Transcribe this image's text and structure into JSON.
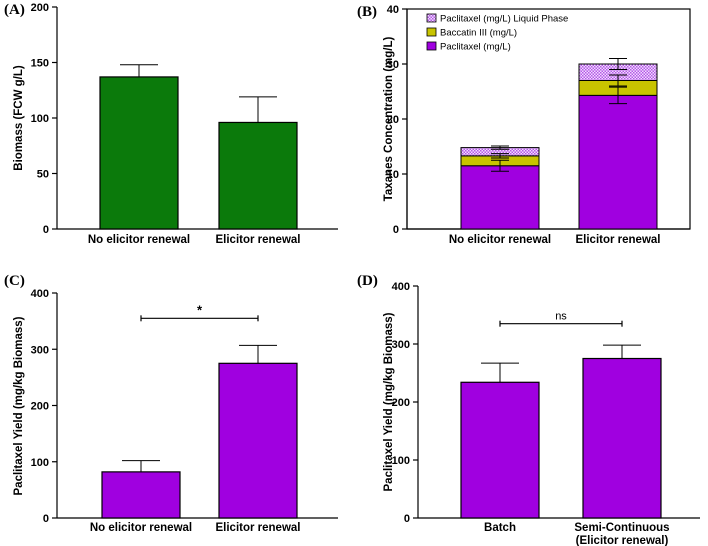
{
  "colors": {
    "green": "#0b7a0b",
    "purple": "#a000e0",
    "olive": "#c8c400",
    "hatch_fg": "#c070e8",
    "hatch_bg": "#f0d8ff"
  },
  "chart_data": [
    {
      "id": "A",
      "type": "bar",
      "panel_label": "(A)",
      "ylabel": "Biomass (FCW g/L)",
      "ylim": [
        0,
        200
      ],
      "yticks": [
        0,
        50,
        100,
        150,
        200
      ],
      "categories": [
        "No elicitor renewal",
        "Elicitor renewal"
      ],
      "values": [
        137,
        96
      ],
      "errors": [
        11,
        23
      ],
      "color": "#0b7a0b"
    },
    {
      "id": "B",
      "type": "bar",
      "stacked": true,
      "panel_label": "(B)",
      "ylabel": "Taxanes Concentration (mg/L)",
      "ylim": [
        0,
        40
      ],
      "yticks": [
        0,
        10,
        20,
        30,
        40
      ],
      "categories": [
        "No elicitor renewal",
        "Elicitor renewal"
      ],
      "series": [
        {
          "name": "Paclitaxel (mg/L)",
          "values": [
            11.5,
            24.3
          ],
          "errors": [
            1.0,
            1.5
          ],
          "color": "#a000e0"
        },
        {
          "name": "Baccatin III (mg/L)",
          "values": [
            1.8,
            2.7
          ],
          "errors": [
            0.4,
            1.0
          ],
          "color": "#c8c400"
        },
        {
          "name": "Paclitaxel (mg/L) Liquid Phase",
          "values": [
            1.5,
            3.0
          ],
          "errors": [
            0.3,
            1.0
          ],
          "color": "#d9a6ff",
          "hatched": true
        }
      ],
      "legend_entries": [
        "Paclitaxel (mg/L) Liquid Phase",
        "Baccatin III (mg/L)",
        "Paclitaxel (mg/L)"
      ]
    },
    {
      "id": "C",
      "type": "bar",
      "panel_label": "(C)",
      "ylabel": "Paclitaxel Yield (mg/kg Biomass)",
      "ylim": [
        0,
        400
      ],
      "yticks": [
        0,
        100,
        200,
        300,
        400
      ],
      "categories": [
        "No elicitor renewal",
        "Elicitor renewal"
      ],
      "values": [
        82,
        275
      ],
      "errors": [
        20,
        32
      ],
      "color": "#a000e0",
      "annotation": {
        "text": "*",
        "y": 355
      }
    },
    {
      "id": "D",
      "type": "bar",
      "panel_label": "(D)",
      "ylabel": "Paclitaxel Yield (mg/kg Biomass)",
      "ylim": [
        0,
        400
      ],
      "yticks": [
        0,
        100,
        200,
        300,
        400
      ],
      "categories": [
        "Batch",
        "Semi-Continuous"
      ],
      "category_sublabels": [
        "",
        "(Elicitor renewal)"
      ],
      "values": [
        234,
        275
      ],
      "errors": [
        33,
        23
      ],
      "color": "#a000e0",
      "annotation": {
        "text": "ns",
        "y": 335
      }
    }
  ]
}
